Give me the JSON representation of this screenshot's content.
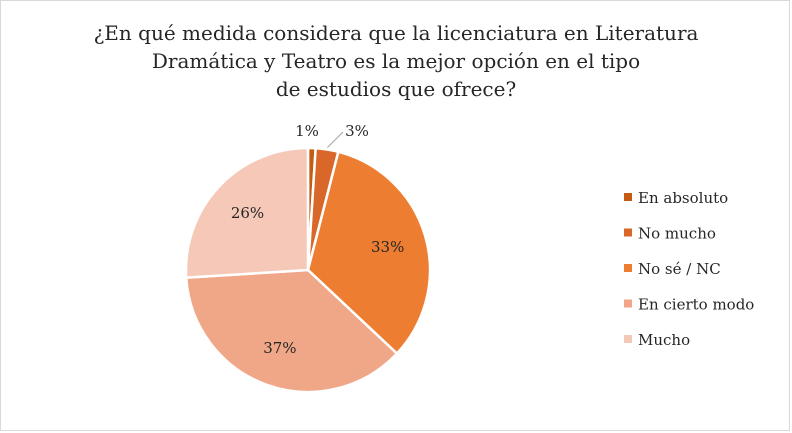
{
  "chart_data": {
    "type": "pie",
    "title_lines": [
      "¿En qué medida considera que la licenciatura en Literatura",
      "Dramática y Teatro es la mejor opción en el tipo",
      "de estudios que ofrece?"
    ],
    "categories": [
      "En absoluto",
      "No mucho",
      "No sé / NC",
      "En cierto modo",
      "Mucho"
    ],
    "values": [
      1,
      3,
      33,
      37,
      26
    ],
    "value_suffix": "%",
    "colors": [
      "#c55a11",
      "#d9672a",
      "#ed7d31",
      "#f0a788",
      "#f5c8b8"
    ],
    "legend_position": "right"
  }
}
